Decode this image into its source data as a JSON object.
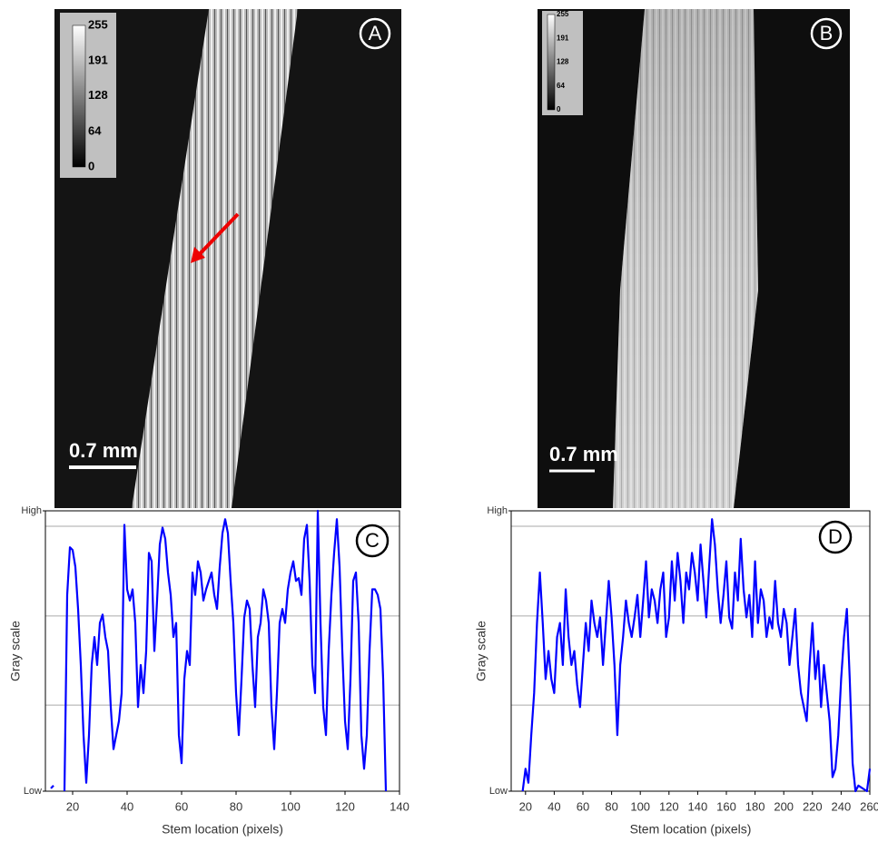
{
  "images": [
    {
      "label": "A",
      "colorbar_ticks": [
        255,
        191,
        128,
        64,
        0
      ],
      "scale_bar": "0.7 mm"
    },
    {
      "label": "B",
      "colorbar_ticks": [
        255,
        191,
        128,
        64,
        0
      ],
      "scale_bar": "0.7 mm"
    }
  ],
  "chart_data": [
    {
      "type": "line",
      "label": "C",
      "xlabel": "Stem location (pixels)",
      "ylabel": "Gray scale",
      "xlim": [
        10,
        140
      ],
      "xticks": [
        20,
        40,
        60,
        80,
        100,
        120,
        140
      ],
      "ylim": [
        0,
        1
      ],
      "yticks": [
        {
          "value": 0,
          "label": "Low"
        },
        {
          "value": 1,
          "label": "High"
        }
      ],
      "ygrid": [
        0.307,
        0.625,
        0.945
      ],
      "x": [
        12,
        13,
        15,
        17,
        18,
        19,
        20,
        21,
        22,
        23,
        24,
        25,
        26,
        27,
        28,
        29,
        30,
        31,
        32,
        33,
        34,
        35,
        36,
        37,
        38,
        39,
        40,
        41,
        42,
        43,
        44,
        45,
        46,
        47,
        48,
        49,
        50,
        51,
        52,
        53,
        54,
        55,
        56,
        57,
        58,
        59,
        60,
        61,
        62,
        63,
        64,
        65,
        66,
        67,
        68,
        69,
        70,
        71,
        72,
        73,
        74,
        75,
        76,
        77,
        78,
        79,
        80,
        81,
        82,
        83,
        84,
        85,
        86,
        87,
        88,
        89,
        90,
        91,
        92,
        93,
        94,
        95,
        96,
        97,
        98,
        99,
        100,
        101,
        102,
        103,
        104,
        105,
        106,
        107,
        108,
        109,
        110,
        111,
        112,
        113,
        114,
        115,
        116,
        117,
        118,
        119,
        120,
        121,
        122,
        123,
        124,
        125,
        126,
        127,
        128,
        129,
        130,
        131,
        132,
        133,
        134,
        135
      ],
      "series": [
        {
          "name": "C",
          "color": "#0000ff",
          "values": [
            0.01,
            0.02,
            null,
            0,
            0.7,
            0.87,
            0.86,
            0.8,
            0.65,
            0.45,
            0.2,
            0.03,
            0.2,
            0.45,
            0.55,
            0.45,
            0.6,
            0.63,
            0.55,
            0.5,
            0.3,
            0.15,
            0.2,
            0.25,
            0.35,
            0.95,
            0.72,
            0.68,
            0.72,
            0.6,
            0.3,
            0.45,
            0.35,
            0.5,
            0.85,
            0.82,
            0.5,
            0.68,
            0.88,
            0.94,
            0.9,
            0.78,
            0.7,
            0.55,
            0.6,
            0.2,
            0.1,
            0.4,
            0.5,
            0.45,
            0.78,
            0.7,
            0.82,
            0.78,
            0.68,
            0.72,
            0.75,
            0.78,
            0.7,
            0.65,
            0.8,
            0.92,
            0.97,
            0.92,
            0.75,
            0.6,
            0.35,
            0.2,
            0.4,
            0.62,
            0.68,
            0.65,
            0.45,
            0.3,
            0.55,
            0.6,
            0.72,
            0.68,
            0.6,
            0.3,
            0.15,
            0.35,
            0.6,
            0.65,
            0.6,
            0.72,
            0.78,
            0.82,
            0.75,
            0.76,
            0.7,
            0.9,
            0.95,
            0.75,
            0.45,
            0.35,
            1.0,
            0.6,
            0.3,
            0.2,
            0.5,
            0.7,
            0.85,
            0.97,
            0.8,
            0.5,
            0.25,
            0.15,
            0.4,
            0.75,
            0.78,
            0.6,
            0.2,
            0.08,
            0.2,
            0.5,
            0.72,
            0.72,
            0.7,
            0.65,
            0.4,
            0
          ]
        }
      ]
    },
    {
      "type": "line",
      "label": "D",
      "xlabel": "Stem location (pixels)",
      "ylabel": "Gray scale",
      "xlim": [
        10,
        260
      ],
      "xticks": [
        20,
        40,
        60,
        80,
        100,
        120,
        140,
        160,
        180,
        200,
        220,
        240,
        260
      ],
      "ylim": [
        0,
        1
      ],
      "yticks": [
        {
          "value": 0,
          "label": "Low"
        },
        {
          "value": 1,
          "label": "High"
        }
      ],
      "ygrid": [
        0.307,
        0.625,
        0.945
      ],
      "x": [
        18,
        20,
        22,
        24,
        26,
        28,
        30,
        32,
        34,
        36,
        38,
        40,
        42,
        44,
        46,
        48,
        50,
        52,
        54,
        56,
        58,
        60,
        62,
        64,
        66,
        68,
        70,
        72,
        74,
        76,
        78,
        80,
        82,
        84,
        86,
        88,
        90,
        92,
        94,
        96,
        98,
        100,
        102,
        104,
        106,
        108,
        110,
        112,
        114,
        116,
        118,
        120,
        122,
        124,
        126,
        128,
        130,
        132,
        134,
        136,
        138,
        140,
        142,
        144,
        146,
        148,
        150,
        152,
        154,
        156,
        158,
        160,
        162,
        164,
        166,
        168,
        170,
        172,
        174,
        176,
        178,
        180,
        182,
        184,
        186,
        188,
        190,
        192,
        194,
        196,
        198,
        200,
        202,
        204,
        206,
        208,
        210,
        212,
        214,
        216,
        218,
        220,
        222,
        224,
        226,
        228,
        230,
        232,
        234,
        236,
        238,
        240,
        242,
        244,
        246,
        248,
        250,
        252,
        258,
        260
      ],
      "series": [
        {
          "name": "D",
          "color": "#0000ff",
          "values": [
            0,
            0.08,
            0.03,
            0.2,
            0.35,
            0.6,
            0.78,
            0.6,
            0.4,
            0.5,
            0.4,
            0.35,
            0.55,
            0.6,
            0.45,
            0.72,
            0.55,
            0.45,
            0.5,
            0.38,
            0.3,
            0.45,
            0.6,
            0.5,
            0.68,
            0.6,
            0.55,
            0.62,
            0.45,
            0.6,
            0.75,
            0.62,
            0.45,
            0.2,
            0.45,
            0.55,
            0.68,
            0.6,
            0.55,
            0.62,
            0.7,
            0.55,
            0.68,
            0.82,
            0.62,
            0.72,
            0.68,
            0.6,
            0.72,
            0.78,
            0.55,
            0.62,
            0.82,
            0.68,
            0.85,
            0.75,
            0.6,
            0.78,
            0.72,
            0.85,
            0.78,
            0.68,
            0.88,
            0.75,
            0.62,
            0.8,
            0.97,
            0.88,
            0.72,
            0.6,
            0.7,
            0.82,
            0.62,
            0.58,
            0.78,
            0.68,
            0.9,
            0.72,
            0.62,
            0.7,
            0.55,
            0.82,
            0.6,
            0.72,
            0.68,
            0.55,
            0.62,
            0.58,
            0.75,
            0.6,
            0.55,
            0.65,
            0.6,
            0.45,
            0.55,
            0.65,
            0.45,
            0.35,
            0.3,
            0.25,
            0.45,
            0.6,
            0.4,
            0.5,
            0.3,
            0.45,
            0.35,
            0.25,
            0.05,
            0.08,
            0.2,
            0.4,
            0.55,
            0.65,
            0.4,
            0.1,
            0,
            0.02,
            0,
            0.08
          ]
        }
      ]
    }
  ]
}
